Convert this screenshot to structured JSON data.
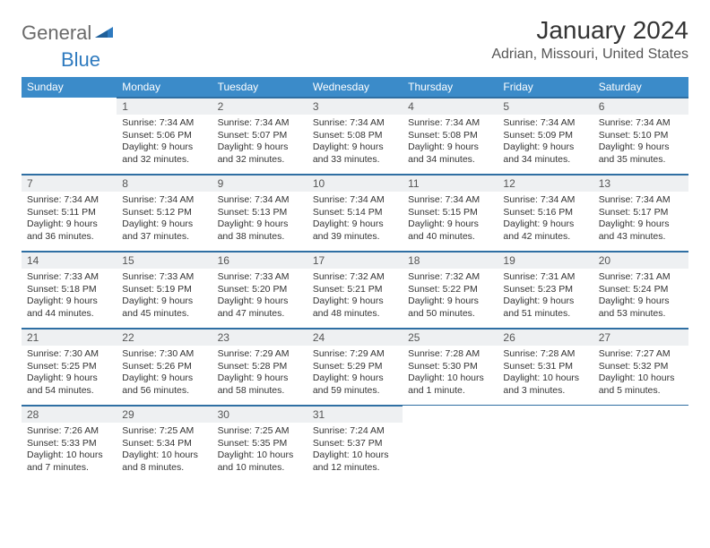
{
  "logo": {
    "part1": "General",
    "part2": "Blue"
  },
  "title": {
    "monthYear": "January 2024",
    "location": "Adrian, Missouri, United States"
  },
  "colors": {
    "headerBg": "#3b8bc9",
    "headerText": "#ffffff",
    "dayNumBg": "#eef0f2",
    "ruleLine": "#2f6fa3",
    "bodyText": "#333333",
    "logoGray": "#6a6a6a",
    "logoBlue": "#2e7abf"
  },
  "dayHeaders": [
    "Sunday",
    "Monday",
    "Tuesday",
    "Wednesday",
    "Thursday",
    "Friday",
    "Saturday"
  ],
  "weeks": [
    [
      null,
      {
        "n": "1",
        "sr": "Sunrise: 7:34 AM",
        "ss": "Sunset: 5:06 PM",
        "dl": "Daylight: 9 hours and 32 minutes."
      },
      {
        "n": "2",
        "sr": "Sunrise: 7:34 AM",
        "ss": "Sunset: 5:07 PM",
        "dl": "Daylight: 9 hours and 32 minutes."
      },
      {
        "n": "3",
        "sr": "Sunrise: 7:34 AM",
        "ss": "Sunset: 5:08 PM",
        "dl": "Daylight: 9 hours and 33 minutes."
      },
      {
        "n": "4",
        "sr": "Sunrise: 7:34 AM",
        "ss": "Sunset: 5:08 PM",
        "dl": "Daylight: 9 hours and 34 minutes."
      },
      {
        "n": "5",
        "sr": "Sunrise: 7:34 AM",
        "ss": "Sunset: 5:09 PM",
        "dl": "Daylight: 9 hours and 34 minutes."
      },
      {
        "n": "6",
        "sr": "Sunrise: 7:34 AM",
        "ss": "Sunset: 5:10 PM",
        "dl": "Daylight: 9 hours and 35 minutes."
      }
    ],
    [
      {
        "n": "7",
        "sr": "Sunrise: 7:34 AM",
        "ss": "Sunset: 5:11 PM",
        "dl": "Daylight: 9 hours and 36 minutes."
      },
      {
        "n": "8",
        "sr": "Sunrise: 7:34 AM",
        "ss": "Sunset: 5:12 PM",
        "dl": "Daylight: 9 hours and 37 minutes."
      },
      {
        "n": "9",
        "sr": "Sunrise: 7:34 AM",
        "ss": "Sunset: 5:13 PM",
        "dl": "Daylight: 9 hours and 38 minutes."
      },
      {
        "n": "10",
        "sr": "Sunrise: 7:34 AM",
        "ss": "Sunset: 5:14 PM",
        "dl": "Daylight: 9 hours and 39 minutes."
      },
      {
        "n": "11",
        "sr": "Sunrise: 7:34 AM",
        "ss": "Sunset: 5:15 PM",
        "dl": "Daylight: 9 hours and 40 minutes."
      },
      {
        "n": "12",
        "sr": "Sunrise: 7:34 AM",
        "ss": "Sunset: 5:16 PM",
        "dl": "Daylight: 9 hours and 42 minutes."
      },
      {
        "n": "13",
        "sr": "Sunrise: 7:34 AM",
        "ss": "Sunset: 5:17 PM",
        "dl": "Daylight: 9 hours and 43 minutes."
      }
    ],
    [
      {
        "n": "14",
        "sr": "Sunrise: 7:33 AM",
        "ss": "Sunset: 5:18 PM",
        "dl": "Daylight: 9 hours and 44 minutes."
      },
      {
        "n": "15",
        "sr": "Sunrise: 7:33 AM",
        "ss": "Sunset: 5:19 PM",
        "dl": "Daylight: 9 hours and 45 minutes."
      },
      {
        "n": "16",
        "sr": "Sunrise: 7:33 AM",
        "ss": "Sunset: 5:20 PM",
        "dl": "Daylight: 9 hours and 47 minutes."
      },
      {
        "n": "17",
        "sr": "Sunrise: 7:32 AM",
        "ss": "Sunset: 5:21 PM",
        "dl": "Daylight: 9 hours and 48 minutes."
      },
      {
        "n": "18",
        "sr": "Sunrise: 7:32 AM",
        "ss": "Sunset: 5:22 PM",
        "dl": "Daylight: 9 hours and 50 minutes."
      },
      {
        "n": "19",
        "sr": "Sunrise: 7:31 AM",
        "ss": "Sunset: 5:23 PM",
        "dl": "Daylight: 9 hours and 51 minutes."
      },
      {
        "n": "20",
        "sr": "Sunrise: 7:31 AM",
        "ss": "Sunset: 5:24 PM",
        "dl": "Daylight: 9 hours and 53 minutes."
      }
    ],
    [
      {
        "n": "21",
        "sr": "Sunrise: 7:30 AM",
        "ss": "Sunset: 5:25 PM",
        "dl": "Daylight: 9 hours and 54 minutes."
      },
      {
        "n": "22",
        "sr": "Sunrise: 7:30 AM",
        "ss": "Sunset: 5:26 PM",
        "dl": "Daylight: 9 hours and 56 minutes."
      },
      {
        "n": "23",
        "sr": "Sunrise: 7:29 AM",
        "ss": "Sunset: 5:28 PM",
        "dl": "Daylight: 9 hours and 58 minutes."
      },
      {
        "n": "24",
        "sr": "Sunrise: 7:29 AM",
        "ss": "Sunset: 5:29 PM",
        "dl": "Daylight: 9 hours and 59 minutes."
      },
      {
        "n": "25",
        "sr": "Sunrise: 7:28 AM",
        "ss": "Sunset: 5:30 PM",
        "dl": "Daylight: 10 hours and 1 minute."
      },
      {
        "n": "26",
        "sr": "Sunrise: 7:28 AM",
        "ss": "Sunset: 5:31 PM",
        "dl": "Daylight: 10 hours and 3 minutes."
      },
      {
        "n": "27",
        "sr": "Sunrise: 7:27 AM",
        "ss": "Sunset: 5:32 PM",
        "dl": "Daylight: 10 hours and 5 minutes."
      }
    ],
    [
      {
        "n": "28",
        "sr": "Sunrise: 7:26 AM",
        "ss": "Sunset: 5:33 PM",
        "dl": "Daylight: 10 hours and 7 minutes."
      },
      {
        "n": "29",
        "sr": "Sunrise: 7:25 AM",
        "ss": "Sunset: 5:34 PM",
        "dl": "Daylight: 10 hours and 8 minutes."
      },
      {
        "n": "30",
        "sr": "Sunrise: 7:25 AM",
        "ss": "Sunset: 5:35 PM",
        "dl": "Daylight: 10 hours and 10 minutes."
      },
      {
        "n": "31",
        "sr": "Sunrise: 7:24 AM",
        "ss": "Sunset: 5:37 PM",
        "dl": "Daylight: 10 hours and 12 minutes."
      },
      null,
      null,
      null
    ]
  ]
}
